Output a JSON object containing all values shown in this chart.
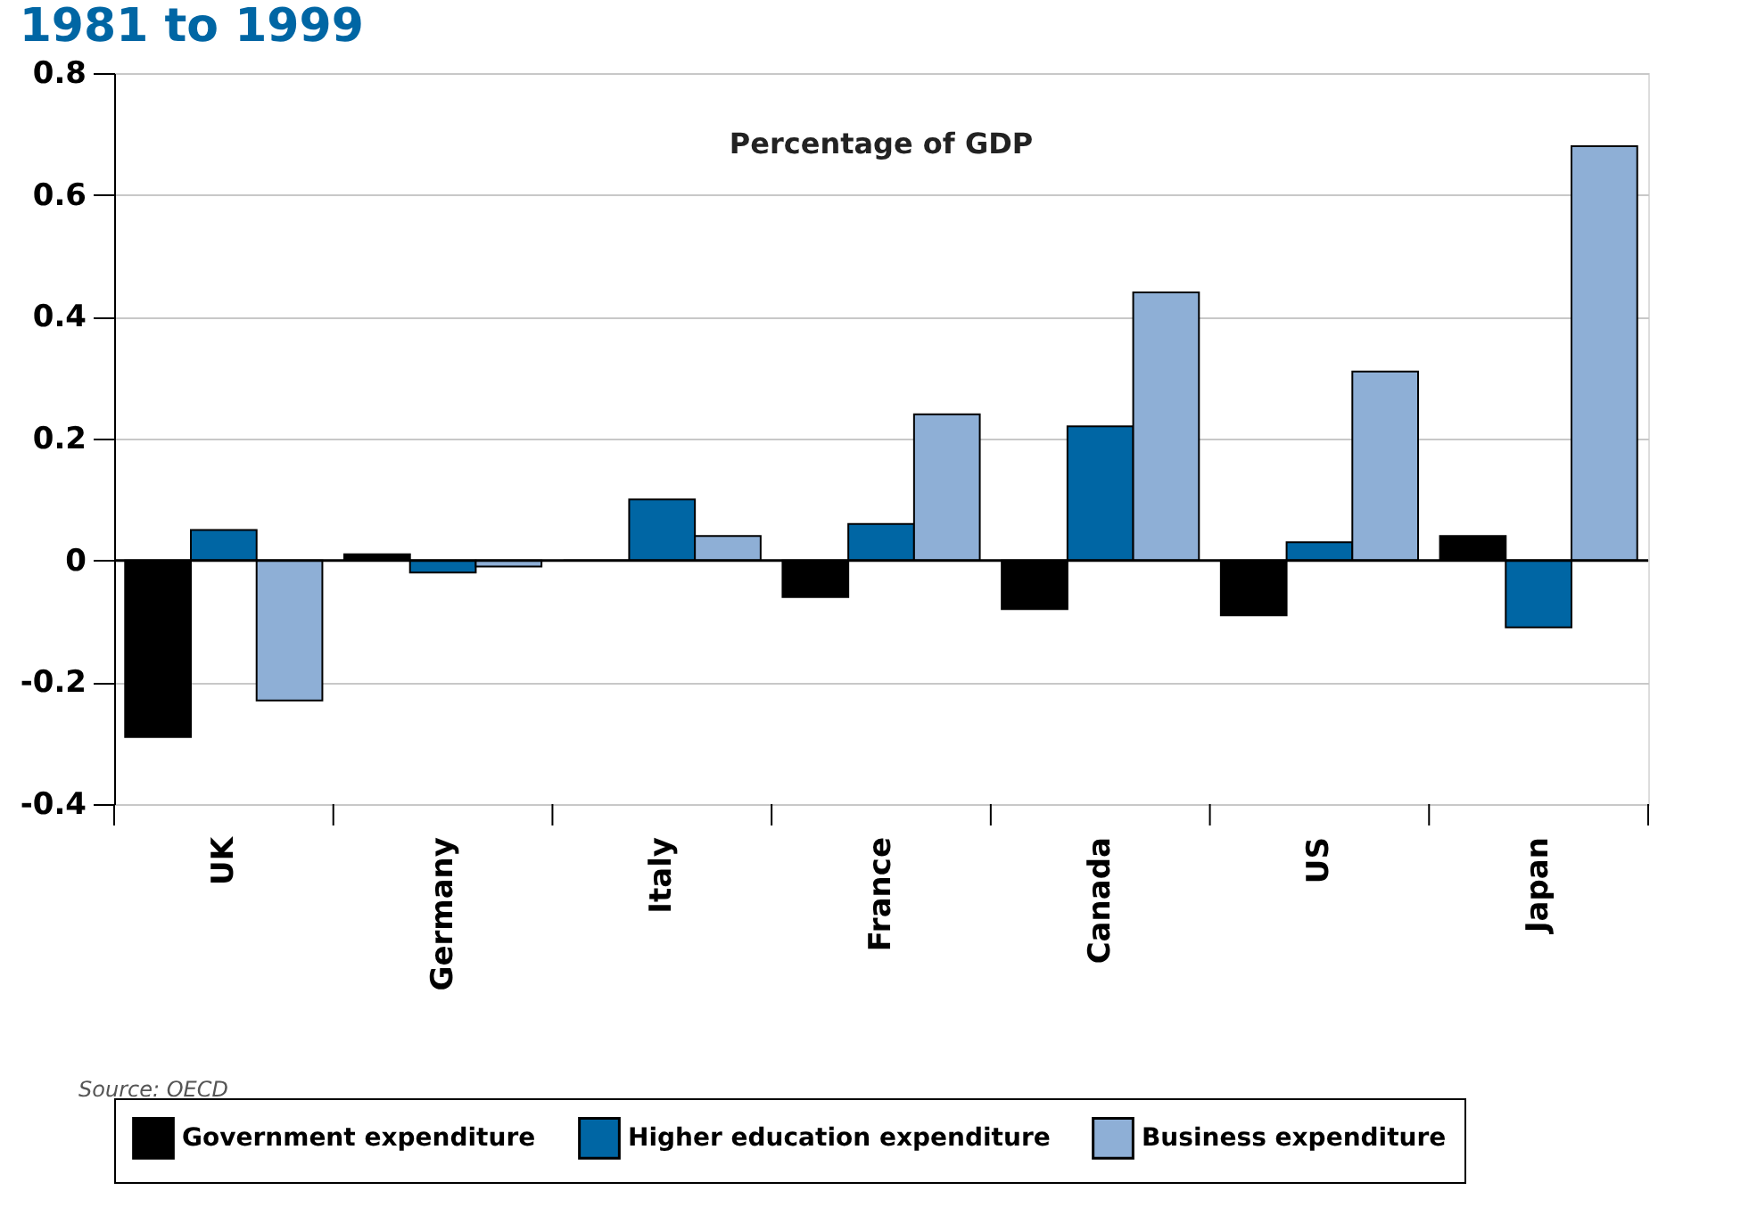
{
  "chart_data": {
    "type": "bar",
    "title": "1981 to 1999",
    "subtitle": "Percentage of GDP",
    "categories": [
      "UK",
      "Germany",
      "Italy",
      "France",
      "Canada",
      "US",
      "Japan"
    ],
    "series": [
      {
        "name": "Government expenditure",
        "color": "#000000",
        "values": [
          -0.29,
          0.01,
          0,
          -0.06,
          -0.08,
          -0.09,
          0.04
        ]
      },
      {
        "name": "Higher education expenditure",
        "color": "#0066a4",
        "values": [
          0.05,
          -0.02,
          0.1,
          0.06,
          0.22,
          0.03,
          -0.11
        ]
      },
      {
        "name": "Business expenditure",
        "color": "#8eafd6",
        "values": [
          -0.23,
          -0.01,
          0.04,
          0.24,
          0.44,
          0.31,
          0.68
        ]
      }
    ],
    "ylim": [
      -0.4,
      0.8
    ],
    "yticks": [
      {
        "value": -0.4,
        "label": "-0.4"
      },
      {
        "value": -0.2,
        "label": "-0.2"
      },
      {
        "value": 0,
        "label": "0"
      },
      {
        "value": 0.2,
        "label": "0.2"
      },
      {
        "value": 0.4,
        "label": "0.4"
      },
      {
        "value": 0.6,
        "label": "0.6"
      },
      {
        "value": 0.8,
        "label": "0.8"
      }
    ],
    "grid": "y",
    "legend": "bottom",
    "ref_lines": [
      {
        "axis": "y",
        "value": 0,
        "color": "#000000"
      }
    ],
    "annotations": [
      "Source: OECD"
    ]
  }
}
